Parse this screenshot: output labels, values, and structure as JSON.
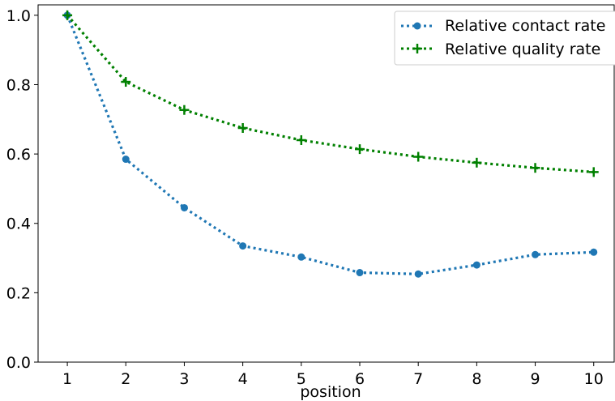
{
  "chart_data": {
    "type": "line",
    "title": "",
    "xlabel": "position",
    "ylabel": "",
    "x": [
      1,
      2,
      3,
      4,
      5,
      6,
      7,
      8,
      9,
      10
    ],
    "xlim": [
      0.5,
      10.35
    ],
    "ylim": [
      0.0,
      1.03
    ],
    "x_ticks": [
      "1",
      "2",
      "3",
      "4",
      "5",
      "6",
      "7",
      "8",
      "9",
      "10"
    ],
    "y_ticks": [
      "0.0",
      "0.2",
      "0.4",
      "0.6",
      "0.8",
      "1.0"
    ],
    "grid": false,
    "legend_position": "top-right",
    "series": [
      {
        "name": "Relative contact rate",
        "color": "#1f77b4",
        "marker": "circle",
        "linestyle": "dotted",
        "values": [
          1.0,
          0.585,
          0.445,
          0.335,
          0.303,
          0.258,
          0.254,
          0.28,
          0.31,
          0.317
        ]
      },
      {
        "name": "Relative quality rate",
        "color": "#008000",
        "marker": "plus",
        "linestyle": "dotted",
        "values": [
          1.0,
          0.808,
          0.727,
          0.675,
          0.64,
          0.614,
          0.592,
          0.575,
          0.56,
          0.548
        ]
      }
    ]
  }
}
